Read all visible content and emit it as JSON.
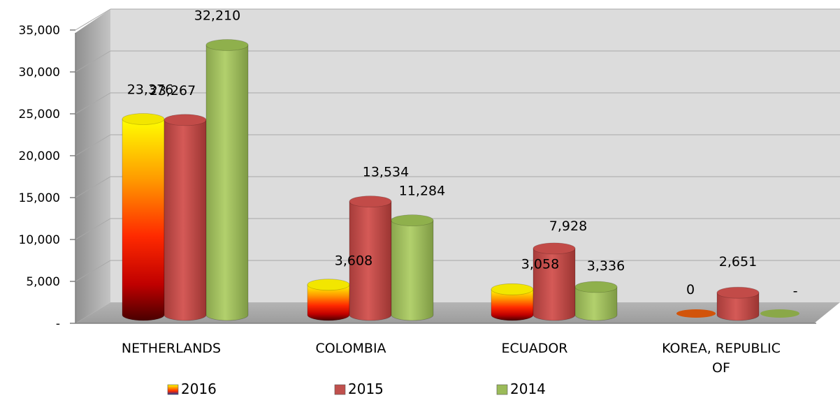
{
  "chart_data": {
    "type": "bar",
    "style": "3d-cylinder",
    "categories": [
      "NETHERLANDS",
      "COLOMBIA",
      "ECUADOR",
      "KOREA, REPUBLIC OF"
    ],
    "category_lines": [
      [
        "NETHERLANDS"
      ],
      [
        "COLOMBIA"
      ],
      [
        "ECUADOR"
      ],
      [
        "KOREA, REPUBLIC",
        "OF"
      ]
    ],
    "series": [
      {
        "name": "2016",
        "values": [
          23376,
          3608,
          3058,
          0
        ],
        "labels": [
          "23,376",
          "3,608",
          "3,058",
          "0"
        ],
        "color": "#ffd400"
      },
      {
        "name": "2015",
        "values": [
          23267,
          13534,
          7928,
          2651
        ],
        "labels": [
          "23,267",
          "13,534",
          "7,928",
          "2,651"
        ],
        "color": "#c0504d"
      },
      {
        "name": "2014",
        "values": [
          32210,
          11284,
          3336,
          0
        ],
        "labels": [
          "32,210",
          "11,284",
          "3,336",
          "-"
        ],
        "color": "#9bbb59"
      }
    ],
    "y_ticks": [
      0,
      5000,
      10000,
      15000,
      20000,
      25000,
      30000,
      35000
    ],
    "y_tick_labels": [
      "-",
      "5,000",
      "10,000",
      "15,000",
      "20,000",
      "25,000",
      "30,000",
      "35,000"
    ],
    "ylim": [
      0,
      35000
    ],
    "grid": true,
    "legend": "bottom-center",
    "title": "",
    "xlabel": "",
    "ylabel": ""
  }
}
